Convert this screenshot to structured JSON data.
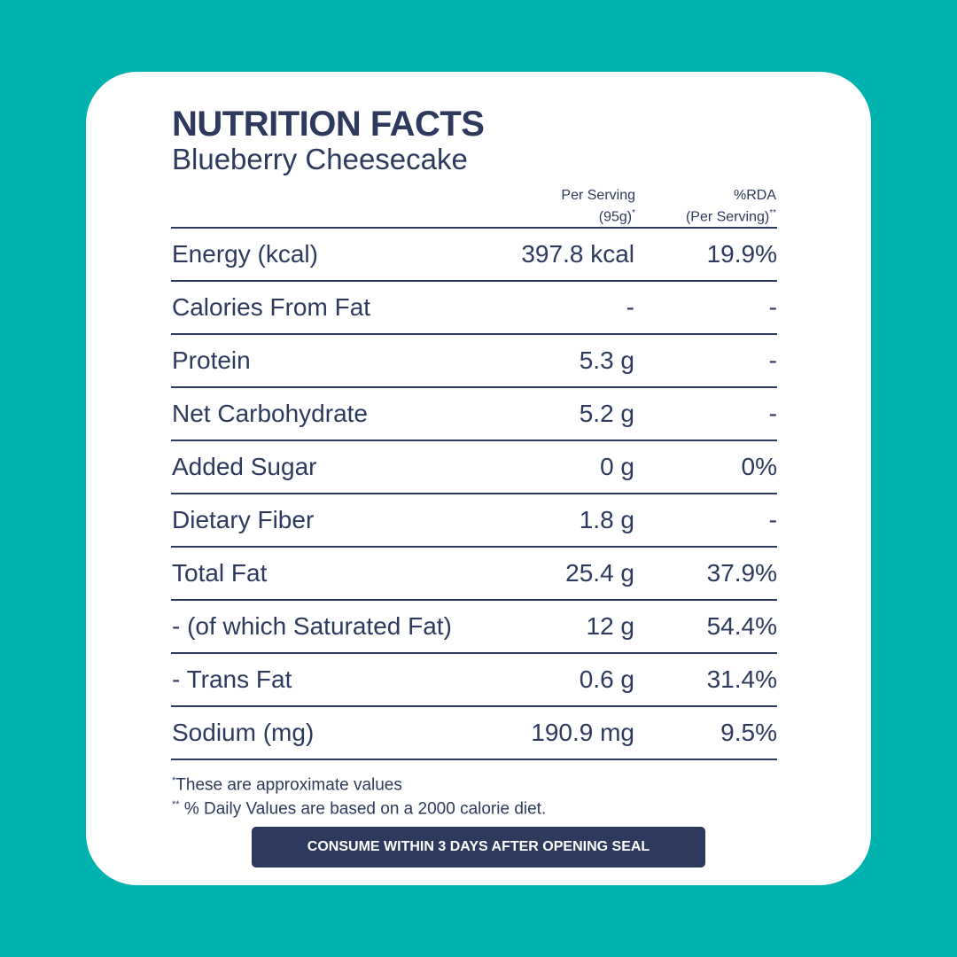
{
  "title": "NUTRITION FACTS",
  "subtitle": "Blueberry Cheesecake",
  "columns": {
    "per_serving_line1": "Per Serving",
    "per_serving_line2": "(95g)",
    "per_serving_mark": "*",
    "rda_line1": "%RDA",
    "rda_line2": "(Per Serving)",
    "rda_mark": "**"
  },
  "rows": [
    {
      "name": "Energy (kcal)",
      "value": "397.8 kcal",
      "rda": "19.9%"
    },
    {
      "name": "Calories From Fat",
      "value": "-",
      "rda": "-"
    },
    {
      "name": "Protein",
      "value": "5.3 g",
      "rda": "-"
    },
    {
      "name": "Net Carbohydrate",
      "value": "5.2 g",
      "rda": "-"
    },
    {
      "name": "Added Sugar",
      "value": "0 g",
      "rda": "0%"
    },
    {
      "name": "Dietary Fiber",
      "value": "1.8 g",
      "rda": "-"
    },
    {
      "name": "Total Fat",
      "value": "25.4 g",
      "rda": "37.9%"
    },
    {
      "name": "- (of which Saturated Fat)",
      "value": "12 g",
      "rda": "54.4%"
    },
    {
      "name": "- Trans Fat",
      "value": "0.6 g",
      "rda": "31.4%"
    },
    {
      "name": "Sodium (mg)",
      "value": "190.9 mg",
      "rda": "9.5%"
    }
  ],
  "footnotes": {
    "note1_mark": "*",
    "note1": "These are approximate values",
    "note2_mark": "**",
    "note2": " % Daily Values are based on a 2000 calorie diet."
  },
  "banner": "CONSUME WITHIN 3 DAYS AFTER OPENING SEAL",
  "colors": {
    "background": "#00b2ae",
    "card": "#ffffff",
    "text": "#2d3a5e",
    "banner_bg": "#2d3a5e",
    "banner_text": "#ffffff"
  }
}
